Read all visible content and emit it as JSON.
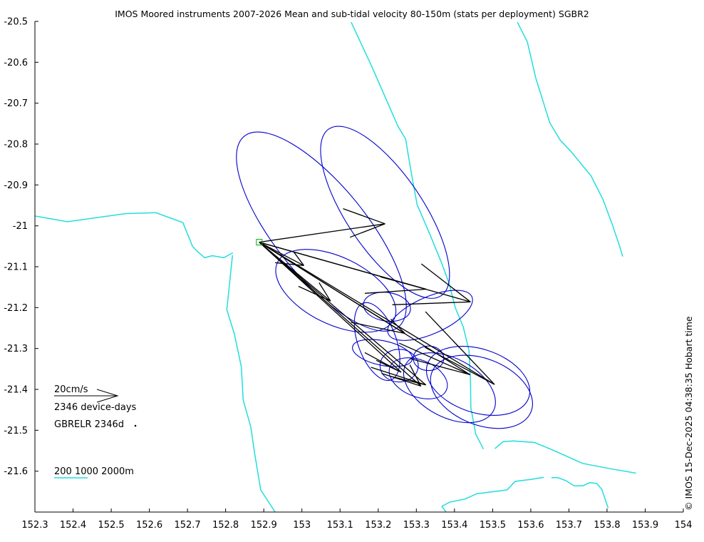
{
  "title": "IMOS Moored instruments 2007-2026 Mean and sub-tidal velocity 80-150m (stats per deployment) SGBR2",
  "credit": "© IMOS 15-Dec-2025 04:38:35 Hobart time",
  "legend": {
    "scale_label": "20cm/s",
    "days_label": "2346 device-days",
    "site_label": "GBRELR 2346d",
    "bathy_label": "200 1000 2000m"
  },
  "colors": {
    "ellipse": "#0000cc",
    "vector": "#000000",
    "isobath": "#22dddd",
    "site_marker": "#00aa00"
  },
  "chart_data": {
    "type": "map",
    "xlim": [
      152.3,
      154
    ],
    "ylim": [
      -21.7,
      -20.5
    ],
    "x_ticks": [
      "152.3",
      "152.4",
      "152.5",
      "152.6",
      "152.7",
      "152.8",
      "152.9",
      "153",
      "153.1",
      "153.2",
      "153.3",
      "153.4",
      "153.5",
      "153.6",
      "153.7",
      "153.8",
      "153.9",
      "154"
    ],
    "y_ticks": [
      "-20.5",
      "-20.6",
      "-20.7",
      "-20.8",
      "-20.9",
      "-21",
      "-21.1",
      "-21.2",
      "-21.3",
      "-21.4",
      "-21.5",
      "-21.6"
    ],
    "site": {
      "name": "GBRELR",
      "lon": 152.888,
      "lat": -21.04
    },
    "isobaths": [
      [
        [
          152.3,
          -20.976
        ],
        [
          152.385,
          -20.99
        ],
        [
          152.538,
          -20.97
        ],
        [
          152.617,
          -20.968
        ],
        [
          152.688,
          -20.992
        ],
        [
          152.713,
          -21.05
        ],
        [
          152.725,
          -21.062
        ],
        [
          152.745,
          -21.078
        ],
        [
          152.765,
          -21.073
        ],
        [
          152.795,
          -21.078
        ],
        [
          152.819,
          -21.066
        ]
      ],
      [
        [
          152.818,
          -21.072
        ],
        [
          152.803,
          -21.205
        ],
        [
          152.823,
          -21.265
        ],
        [
          152.841,
          -21.344
        ],
        [
          152.846,
          -21.426
        ],
        [
          152.866,
          -21.492
        ],
        [
          152.876,
          -21.556
        ],
        [
          152.892,
          -21.646
        ],
        [
          152.944,
          -21.72
        ],
        [
          152.981,
          -21.755
        ]
      ],
      [
        [
          153.129,
          -20.502
        ],
        [
          153.184,
          -20.612
        ],
        [
          153.252,
          -20.757
        ],
        [
          153.272,
          -20.788
        ],
        [
          153.278,
          -20.822
        ],
        [
          153.289,
          -20.882
        ],
        [
          153.302,
          -20.948
        ],
        [
          153.336,
          -21.022
        ],
        [
          153.366,
          -21.09
        ],
        [
          153.386,
          -21.141
        ],
        [
          153.402,
          -21.2
        ],
        [
          153.423,
          -21.247
        ],
        [
          153.438,
          -21.305
        ],
        [
          153.442,
          -21.38
        ],
        [
          153.443,
          -21.445
        ],
        [
          153.456,
          -21.51
        ],
        [
          153.476,
          -21.546
        ]
      ],
      [
        [
          153.565,
          -20.502
        ],
        [
          153.591,
          -20.55
        ],
        [
          153.613,
          -20.638
        ],
        [
          153.65,
          -20.748
        ],
        [
          153.677,
          -20.79
        ],
        [
          153.705,
          -20.818
        ],
        [
          153.758,
          -20.878
        ],
        [
          153.789,
          -20.935
        ],
        [
          153.813,
          -20.995
        ],
        [
          153.833,
          -21.05
        ],
        [
          153.841,
          -21.075
        ]
      ],
      [
        [
          153.506,
          -21.545
        ],
        [
          153.527,
          -21.528
        ],
        [
          153.554,
          -21.526
        ],
        [
          153.61,
          -21.53
        ],
        [
          153.657,
          -21.548
        ],
        [
          153.736,
          -21.581
        ],
        [
          153.803,
          -21.593
        ],
        [
          153.876,
          -21.605
        ]
      ],
      [
        [
          153.378,
          -21.7
        ],
        [
          153.367,
          -21.686
        ],
        [
          153.387,
          -21.676
        ],
        [
          153.428,
          -21.668
        ],
        [
          153.459,
          -21.655
        ],
        [
          153.538,
          -21.646
        ],
        [
          153.559,
          -21.625
        ],
        [
          153.602,
          -21.62
        ],
        [
          153.634,
          -21.615
        ]
      ],
      [
        [
          153.654,
          -21.616
        ],
        [
          153.671,
          -21.616
        ],
        [
          153.692,
          -21.623
        ],
        [
          153.714,
          -21.636
        ],
        [
          153.736,
          -21.636
        ],
        [
          153.755,
          -21.628
        ],
        [
          153.773,
          -21.63
        ],
        [
          153.786,
          -21.644
        ],
        [
          153.803,
          -21.69
        ]
      ]
    ],
    "ellipses": [
      {
        "lon": 153.051,
        "lat": -21.014,
        "rx": 0.12,
        "ry": 0.3,
        "angle": -39
      },
      {
        "lon": 153.218,
        "lat": -20.967,
        "rx": 0.1,
        "ry": 0.246,
        "angle": -34
      },
      {
        "lon": 153.089,
        "lat": -21.159,
        "rx": 0.17,
        "ry": 0.082,
        "angle": 26
      },
      {
        "lon": 153.223,
        "lat": -21.198,
        "rx": 0.062,
        "ry": 0.035,
        "angle": 8
      },
      {
        "lon": 153.336,
        "lat": -21.219,
        "rx": 0.12,
        "ry": 0.045,
        "angle": -24
      },
      {
        "lon": 153.197,
        "lat": -21.283,
        "rx": 0.05,
        "ry": 0.1,
        "angle": -20
      },
      {
        "lon": 153.211,
        "lat": -21.311,
        "rx": 0.08,
        "ry": 0.03,
        "angle": 12
      },
      {
        "lon": 153.255,
        "lat": -21.342,
        "rx": 0.05,
        "ry": 0.04,
        "angle": 0
      },
      {
        "lon": 153.305,
        "lat": -21.373,
        "rx": 0.08,
        "ry": 0.045,
        "angle": 22
      },
      {
        "lon": 153.332,
        "lat": -21.324,
        "rx": 0.04,
        "ry": 0.03,
        "angle": 0
      },
      {
        "lon": 153.387,
        "lat": -21.396,
        "rx": 0.13,
        "ry": 0.072,
        "angle": 28
      },
      {
        "lon": 153.462,
        "lat": -21.379,
        "rx": 0.14,
        "ry": 0.078,
        "angle": 18
      },
      {
        "lon": 153.471,
        "lat": -21.406,
        "rx": 0.14,
        "ry": 0.081,
        "angle": 22
      }
    ],
    "vectors": [
      [
        [
          152.888,
          -21.04
        ],
        [
          153.218,
          -20.995
        ],
        [
          153.108,
          -20.958
        ]
      ],
      [
        [
          153.218,
          -20.995
        ],
        [
          153.126,
          -21.028
        ]
      ],
      [
        [
          152.888,
          -21.04
        ],
        [
          153.326,
          -21.155
        ],
        [
          153.206,
          -21.125
        ]
      ],
      [
        [
          153.326,
          -21.155
        ],
        [
          153.165,
          -21.165
        ]
      ],
      [
        [
          152.888,
          -21.04
        ],
        [
          153.442,
          -21.186
        ],
        [
          153.313,
          -21.093
        ]
      ],
      [
        [
          153.442,
          -21.186
        ],
        [
          153.237,
          -21.193
        ]
      ],
      [
        [
          152.888,
          -21.04
        ],
        [
          153.005,
          -21.097
        ],
        [
          152.978,
          -21.063
        ]
      ],
      [
        [
          153.005,
          -21.097
        ],
        [
          152.93,
          -21.09
        ]
      ],
      [
        [
          152.888,
          -21.04
        ],
        [
          153.075,
          -21.184
        ],
        [
          153.045,
          -21.139
        ]
      ],
      [
        [
          153.075,
          -21.184
        ],
        [
          152.991,
          -21.148
        ]
      ],
      [
        [
          152.888,
          -21.04
        ],
        [
          153.325,
          -21.389
        ],
        [
          153.181,
          -21.346
        ]
      ],
      [
        [
          153.325,
          -21.389
        ],
        [
          153.233,
          -21.368
        ]
      ],
      [
        [
          152.888,
          -21.04
        ],
        [
          153.505,
          -21.388
        ],
        [
          153.324,
          -21.21
        ]
      ],
      [
        [
          153.505,
          -21.388
        ],
        [
          153.322,
          -21.297
        ]
      ],
      [
        [
          152.888,
          -21.04
        ],
        [
          153.27,
          -21.263
        ],
        [
          153.129,
          -21.236
        ]
      ],
      [
        [
          153.27,
          -21.263
        ],
        [
          153.233,
          -21.228
        ]
      ],
      [
        [
          152.888,
          -21.04
        ],
        [
          153.26,
          -21.358
        ],
        [
          153.165,
          -21.31
        ]
      ],
      [
        [
          153.26,
          -21.358
        ],
        [
          153.195,
          -21.329
        ]
      ],
      [
        [
          152.888,
          -21.04
        ],
        [
          153.312,
          -21.392
        ],
        [
          153.283,
          -21.34
        ]
      ],
      [
        [
          153.312,
          -21.392
        ],
        [
          153.209,
          -21.361
        ]
      ],
      [
        [
          152.888,
          -21.04
        ],
        [
          153.441,
          -21.364
        ],
        [
          153.255,
          -21.287
        ]
      ],
      [
        [
          153.441,
          -21.364
        ],
        [
          153.285,
          -21.325
        ]
      ]
    ]
  }
}
